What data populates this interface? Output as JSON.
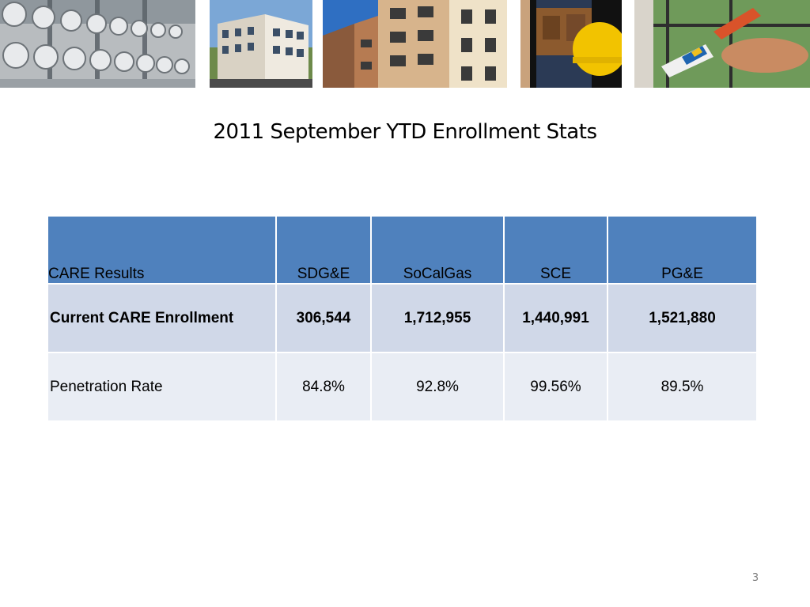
{
  "slide": {
    "title": "2011 September YTD Enrollment Stats",
    "page_number": "3"
  },
  "photos": [
    {
      "icon": "gas-meters-photo"
    },
    {
      "icon": "apartment-building-photo"
    },
    {
      "icon": "apartment-balconies-photo"
    },
    {
      "icon": "tool-belt-worker-photo"
    },
    {
      "icon": "caulking-gun-photo"
    }
  ],
  "table": {
    "headers": [
      "CARE Results",
      "SDG&E",
      "SoCalGas",
      "SCE",
      "PG&E"
    ],
    "rows": [
      {
        "label": "Current CARE Enrollment",
        "values": [
          "306,544",
          "1,712,955",
          "1,440,991",
          "1,521,880"
        ]
      },
      {
        "label": "Penetration Rate",
        "values": [
          "84.8%",
          "92.8%",
          "99.56%",
          "89.5%"
        ]
      }
    ]
  },
  "colors": {
    "header_bg": "#4f81bd",
    "row1_bg": "#d0d8e8",
    "row2_bg": "#e9edf4"
  }
}
